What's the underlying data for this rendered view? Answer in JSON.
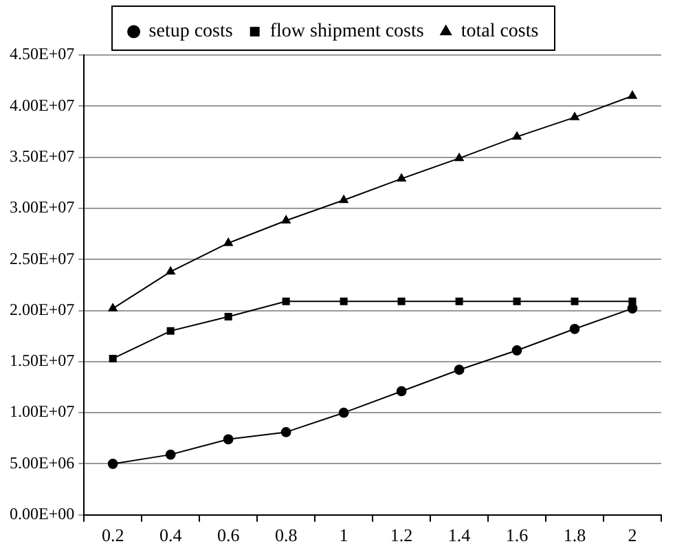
{
  "chart_data": {
    "type": "line",
    "categories": [
      "0.2",
      "0.4",
      "0.6",
      "0.8",
      "1",
      "1.2",
      "1.4",
      "1.6",
      "1.8",
      "2"
    ],
    "series": [
      {
        "name": "setup costs",
        "color": "#000000",
        "marker": "circle",
        "values": [
          5000000.0,
          5900000.0,
          7400000.0,
          8100000.0,
          10000000.0,
          12100000.0,
          14200000.0,
          16100000.0,
          18200000.0,
          20200000.0
        ]
      },
      {
        "name": "flow shipment costs",
        "color": "#000000",
        "marker": "square",
        "values": [
          15300000.0,
          18000000.0,
          19400000.0,
          20900000.0,
          20900000.0,
          20900000.0,
          20900000.0,
          20900000.0,
          20900000.0,
          20900000.0
        ]
      },
      {
        "name": "total costs",
        "color": "#000000",
        "marker": "triangle",
        "values": [
          20200000.0,
          23800000.0,
          26600000.0,
          28800000.0,
          30800000.0,
          32900000.0,
          34900000.0,
          37000000.0,
          38900000.0,
          41000000.0
        ]
      }
    ],
    "ylim": [
      0,
      45000000.0
    ],
    "yticks": [
      {
        "value": 0,
        "label": "0.00E+00"
      },
      {
        "value": 5000000.0,
        "label": "5.00E+06"
      },
      {
        "value": 10000000.0,
        "label": "1.00E+07"
      },
      {
        "value": 15000000.0,
        "label": "1.50E+07"
      },
      {
        "value": 20000000.0,
        "label": "2.00E+07"
      },
      {
        "value": 25000000.0,
        "label": "2.50E+07"
      },
      {
        "value": 30000000.0,
        "label": "3.00E+07"
      },
      {
        "value": 35000000.0,
        "label": "3.50E+07"
      },
      {
        "value": 40000000.0,
        "label": "4.00E+07"
      },
      {
        "value": 45000000.0,
        "label": "4.50E+07"
      }
    ],
    "grid": "y",
    "legend": "top",
    "line_style": "solid"
  }
}
